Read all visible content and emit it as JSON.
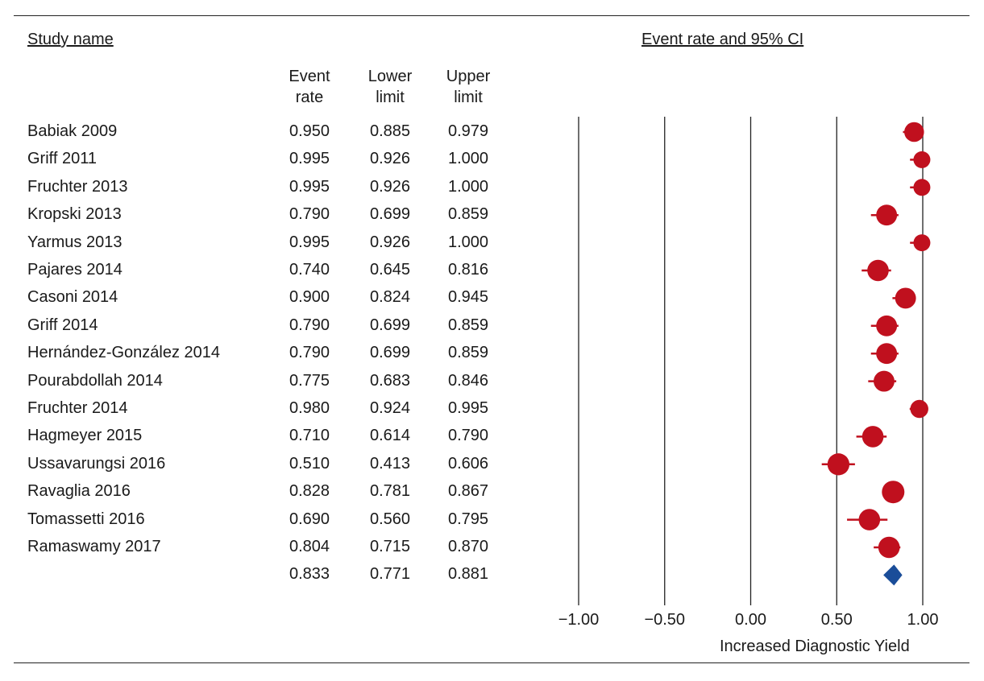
{
  "headers": {
    "study_name": "Study name",
    "ci_title": "Event rate and 95% CI",
    "col_event": [
      "Event",
      "rate"
    ],
    "col_lower": [
      "Lower",
      "limit"
    ],
    "col_upper": [
      "Upper",
      "limit"
    ]
  },
  "chart_data": {
    "type": "forest",
    "title": "Event rate and 95% CI",
    "xlabel": "Increased Diagnostic Yield",
    "xlim": [
      -1.0,
      1.0
    ],
    "ticks": [
      -1.0,
      -0.5,
      0.0,
      0.5,
      1.0
    ],
    "tick_labels": [
      "−1.00",
      "−0.50",
      "0.00",
      "0.50",
      "1.00"
    ],
    "grid": "vertical",
    "colors": {
      "study": "#c0101e",
      "summary": "#1a4d99"
    },
    "studies": [
      {
        "name": "Babiak 2009",
        "rate": "0.950",
        "lower": "0.885",
        "upper": "0.979",
        "marker_size": 0.75
      },
      {
        "name": "Griff 2011",
        "rate": "0.995",
        "lower": "0.926",
        "upper": "1.000",
        "marker_size": 0.5
      },
      {
        "name": "Fruchter 2013",
        "rate": "0.995",
        "lower": "0.926",
        "upper": "1.000",
        "marker_size": 0.5
      },
      {
        "name": "Kropski 2013",
        "rate": "0.790",
        "lower": "0.699",
        "upper": "0.859",
        "marker_size": 0.85
      },
      {
        "name": "Yarmus 2013",
        "rate": "0.995",
        "lower": "0.926",
        "upper": "1.000",
        "marker_size": 0.5
      },
      {
        "name": "Pajares 2014",
        "rate": "0.740",
        "lower": "0.645",
        "upper": "0.816",
        "marker_size": 0.9
      },
      {
        "name": "Casoni 2014",
        "rate": "0.900",
        "lower": "0.824",
        "upper": "0.945",
        "marker_size": 0.85
      },
      {
        "name": "Griff 2014",
        "rate": "0.790",
        "lower": "0.699",
        "upper": "0.859",
        "marker_size": 0.85
      },
      {
        "name": "Hernández-González 2014",
        "rate": "0.790",
        "lower": "0.699",
        "upper": "0.859",
        "marker_size": 0.85
      },
      {
        "name": "Pourabdollah 2014",
        "rate": "0.775",
        "lower": "0.683",
        "upper": "0.846",
        "marker_size": 0.85
      },
      {
        "name": "Fruchter 2014",
        "rate": "0.980",
        "lower": "0.924",
        "upper": "0.995",
        "marker_size": 0.6
      },
      {
        "name": "Hagmeyer 2015",
        "rate": "0.710",
        "lower": "0.614",
        "upper": "0.790",
        "marker_size": 0.9
      },
      {
        "name": "Ussavarungsi 2016",
        "rate": "0.510",
        "lower": "0.413",
        "upper": "0.606",
        "marker_size": 0.95
      },
      {
        "name": "Ravaglia 2016",
        "rate": "0.828",
        "lower": "0.781",
        "upper": "0.867",
        "marker_size": 1.0
      },
      {
        "name": "Tomassetti 2016",
        "rate": "0.690",
        "lower": "0.560",
        "upper": "0.795",
        "marker_size": 0.9
      },
      {
        "name": "Ramaswamy 2017",
        "rate": "0.804",
        "lower": "0.715",
        "upper": "0.870",
        "marker_size": 0.9
      }
    ],
    "summary": {
      "name": "",
      "rate": "0.833",
      "lower": "0.771",
      "upper": "0.881"
    }
  }
}
